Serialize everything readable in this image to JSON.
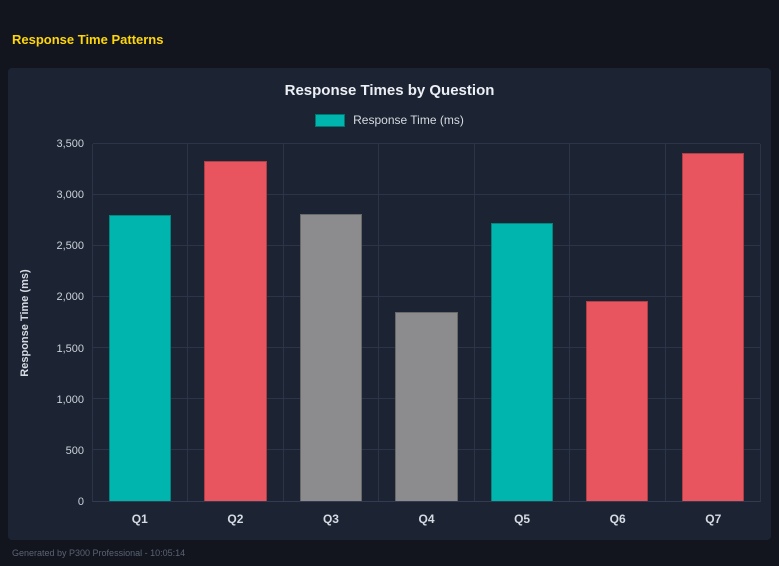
{
  "page": {
    "header_title": "Response Time Patterns",
    "footer_text": "Generated by P300 Professional - 10:05:14"
  },
  "theme": {
    "accent_yellow": "#ffd60a",
    "outer_background": "#12151e",
    "panel_background": "#1c2433",
    "grid_color": "#2c3448",
    "text_color": "#d6dae2",
    "teal": "#00b5ad",
    "red": "#e8555f",
    "gray": "#8c8c8e"
  },
  "chart_data": {
    "type": "bar",
    "title": "Response Times by Question",
    "xlabel": "",
    "ylabel": "Response Time (ms)",
    "legend": [
      {
        "label": "Response Time (ms)",
        "color": "#00b5ad"
      }
    ],
    "legend_position": "top",
    "grid": true,
    "categories": [
      "Q1",
      "Q2",
      "Q3",
      "Q4",
      "Q5",
      "Q6",
      "Q7"
    ],
    "values": [
      2800,
      3330,
      2810,
      1850,
      2730,
      1960,
      3410
    ],
    "colors": [
      "#00b5ad",
      "#e8555f",
      "#8c8c8e",
      "#8c8c8e",
      "#00b5ad",
      "#e8555f",
      "#e8555f"
    ],
    "ylim": [
      0,
      3500
    ],
    "yticks": [
      0,
      500,
      1000,
      1500,
      2000,
      2500,
      3000,
      3500
    ],
    "ytick_labels": [
      "0",
      "500",
      "1,000",
      "1,500",
      "2,000",
      "2,500",
      "3,000",
      "3,500"
    ]
  }
}
